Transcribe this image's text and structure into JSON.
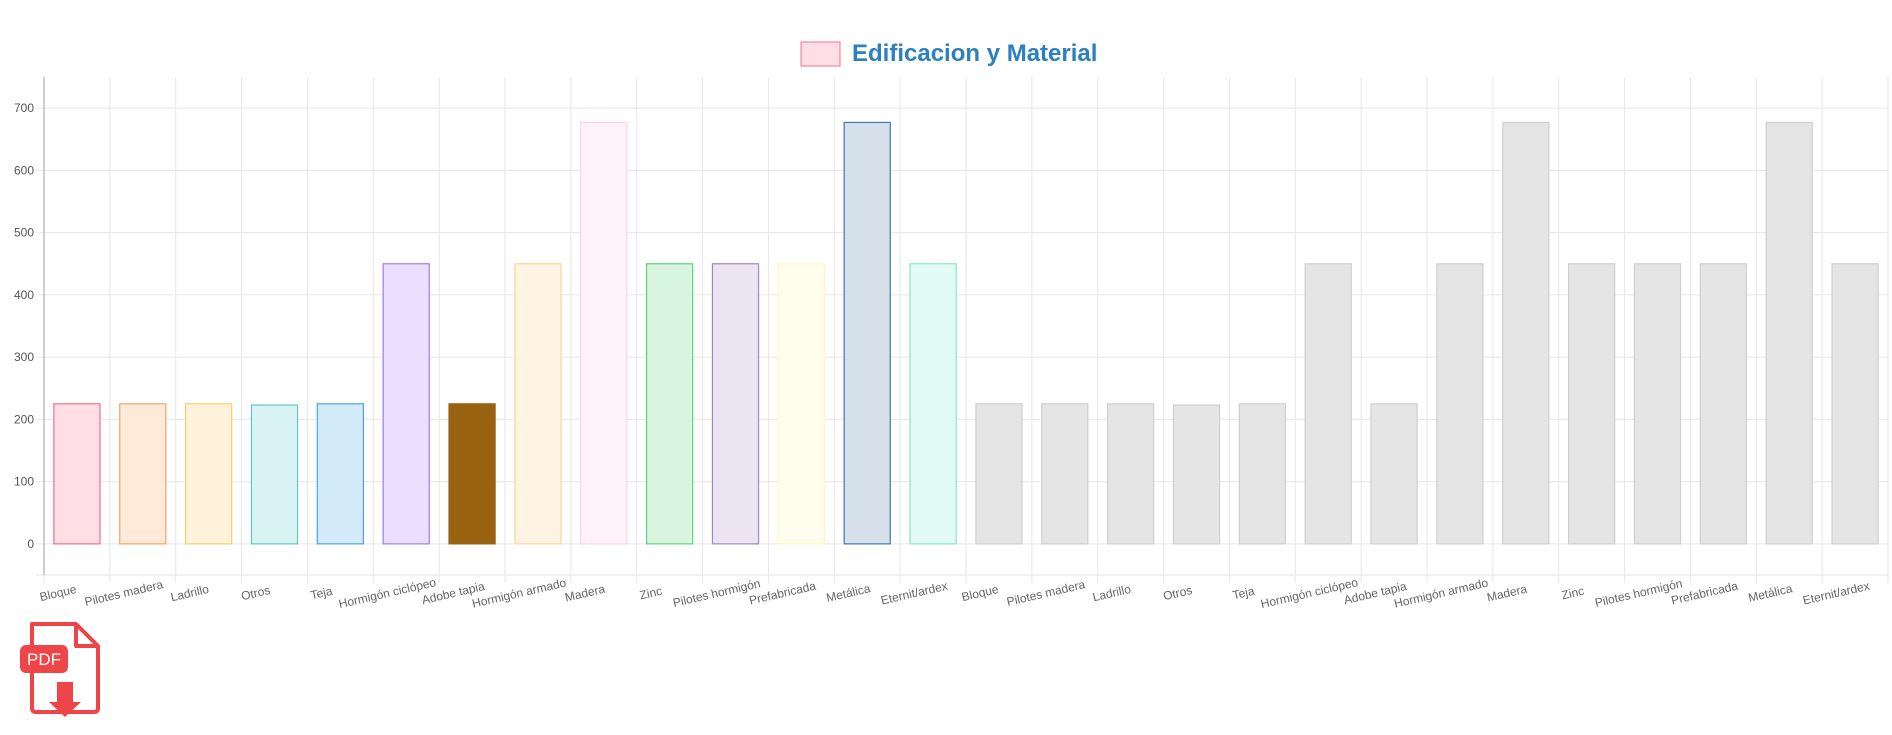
{
  "chart_data": {
    "type": "bar",
    "title": "",
    "xlabel": "",
    "ylabel": "",
    "ylim": [
      -50,
      750
    ],
    "yticks": [
      0,
      100,
      200,
      300,
      400,
      500,
      600,
      700
    ],
    "grid": true,
    "legend": {
      "placement": "top-center",
      "entries": [
        {
          "label": "Edificacion y Material",
          "fill": "#ffdfe5",
          "border": "#f0708c",
          "text_color": "#2b80bf"
        }
      ]
    },
    "categories": [
      "Bloque",
      "Pilotes madera",
      "Ladrillo",
      "Otros",
      "Teja",
      "Hormigón ciclópeo",
      "Adobe tapia",
      "Hormigón armado",
      "Madera",
      "Zinc",
      "Pilotes hormigón",
      "Prefabricada",
      "Metálica",
      "Eternit/ardex",
      "Bloque",
      "Pilotes madera",
      "Ladrillo",
      "Otros",
      "Teja",
      "Hormigón ciclópeo",
      "Adobe tapia",
      "Hormigón armado",
      "Madera",
      "Zinc",
      "Pilotes hormigón",
      "Prefabricada",
      "Metálica",
      "Eternit/ardex"
    ],
    "series": [
      {
        "name": "Edificacion y Material",
        "values": [
          225,
          225,
          225,
          223,
          225,
          450,
          225,
          450,
          677,
          450,
          450,
          450,
          677,
          450,
          225,
          225,
          225,
          223,
          225,
          450,
          225,
          450,
          677,
          450,
          450,
          450,
          677,
          450
        ],
        "fills": [
          "#ffdfe5",
          "#ffead9",
          "#fff3db",
          "#d9f2f3",
          "#d3eaf9",
          "#ebdfff",
          "#986211",
          "#fff3e3",
          "#fff2f9",
          "#d8f5df",
          "#ebe5f1",
          "#fffded",
          "#d5e0ea",
          "#e1fbf4",
          "#e5e5e5",
          "#e5e5e5",
          "#e5e5e5",
          "#e5e5e5",
          "#e5e5e5",
          "#e5e5e5",
          "#e5e5e5",
          "#e5e5e5",
          "#e5e5e5",
          "#e5e5e5",
          "#e5e5e5",
          "#e5e5e5",
          "#e5e5e5",
          "#e5e5e5"
        ],
        "borders": [
          "#f0708c",
          "#f5a462",
          "#fbce6b",
          "#63c6c6",
          "#4ba4e6",
          "#a37af5",
          "#986211",
          "#fcd596",
          "#fdd3ea",
          "#61d07e",
          "#9d89bb",
          "#fff8bd",
          "#3d78b0",
          "#88e6c9",
          "#cfcfcf",
          "#cfcfcf",
          "#cfcfcf",
          "#cfcfcf",
          "#cfcfcf",
          "#cfcfcf",
          "#cfcfcf",
          "#cfcfcf",
          "#cfcfcf",
          "#cfcfcf",
          "#cfcfcf",
          "#cfcfcf",
          "#cfcfcf",
          "#cfcfcf"
        ]
      }
    ]
  },
  "pdf_button": {
    "label": "PDF",
    "icon": "pdf-download-icon",
    "color": "#ef4548"
  }
}
